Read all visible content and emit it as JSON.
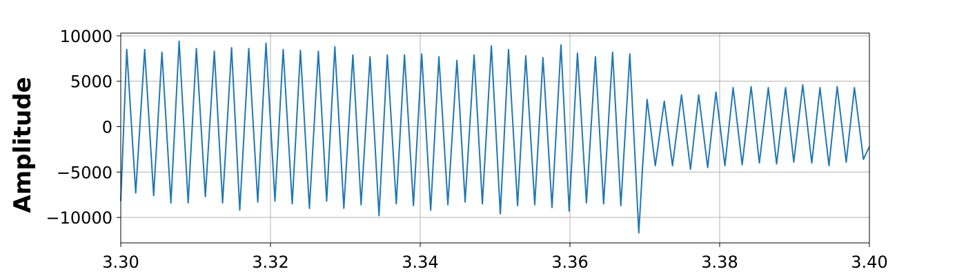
{
  "chart_data": {
    "type": "line",
    "title": "",
    "xlabel": "",
    "ylabel": "Amplitude",
    "xlim": [
      3.3,
      3.4
    ],
    "ylim": [
      -12800,
      10300
    ],
    "grid": true,
    "legend": "none",
    "colors": {
      "line": "#1f77b4",
      "grid": "#b0b0b0",
      "frame": "#000000"
    },
    "x_ticks": [
      {
        "value": 3.3,
        "label": "3.30"
      },
      {
        "value": 3.32,
        "label": "3.32"
      },
      {
        "value": 3.34,
        "label": "3.34"
      },
      {
        "value": 3.36,
        "label": "3.36"
      },
      {
        "value": 3.38,
        "label": "3.38"
      },
      {
        "value": 3.4,
        "label": "3.40"
      }
    ],
    "y_ticks": [
      {
        "value": 10000,
        "label": "10000"
      },
      {
        "value": 5000,
        "label": "5000"
      },
      {
        "value": 0,
        "label": "0"
      },
      {
        "value": -5000,
        "label": "−5000"
      },
      {
        "value": -10000,
        "label": "−10000"
      }
    ],
    "series": [
      {
        "points": [
          [
            3.3,
            -8200
          ],
          [
            3.3008,
            8500
          ],
          [
            3.302,
            -7300
          ],
          [
            3.3032,
            8500
          ],
          [
            3.3044,
            -7600
          ],
          [
            3.3055,
            8200
          ],
          [
            3.3067,
            -8400
          ],
          [
            3.3078,
            9400
          ],
          [
            3.309,
            -8400
          ],
          [
            3.3101,
            8600
          ],
          [
            3.3113,
            -7700
          ],
          [
            3.3125,
            8300
          ],
          [
            3.3136,
            -8400
          ],
          [
            3.3148,
            8700
          ],
          [
            3.3159,
            -9200
          ],
          [
            3.3171,
            8600
          ],
          [
            3.3183,
            -8300
          ],
          [
            3.3194,
            9200
          ],
          [
            3.3206,
            -8200
          ],
          [
            3.3217,
            8500
          ],
          [
            3.3229,
            -8500
          ],
          [
            3.324,
            8400
          ],
          [
            3.3252,
            -9000
          ],
          [
            3.3264,
            8300
          ],
          [
            3.3275,
            -8200
          ],
          [
            3.3286,
            8800
          ],
          [
            3.3298,
            -9000
          ],
          [
            3.331,
            7900
          ],
          [
            3.3321,
            -8600
          ],
          [
            3.3333,
            7700
          ],
          [
            3.3345,
            -9800
          ],
          [
            3.3356,
            7900
          ],
          [
            3.3368,
            -8500
          ],
          [
            3.3379,
            7900
          ],
          [
            3.3391,
            -8700
          ],
          [
            3.3402,
            8000
          ],
          [
            3.3414,
            -9200
          ],
          [
            3.3425,
            7700
          ],
          [
            3.3437,
            -8600
          ],
          [
            3.3449,
            7300
          ],
          [
            3.346,
            -8300
          ],
          [
            3.3472,
            7900
          ],
          [
            3.3483,
            -8500
          ],
          [
            3.3495,
            8900
          ],
          [
            3.3507,
            -9600
          ],
          [
            3.3518,
            8500
          ],
          [
            3.353,
            -8700
          ],
          [
            3.3541,
            7800
          ],
          [
            3.3553,
            -8600
          ],
          [
            3.3564,
            7600
          ],
          [
            3.3576,
            -8900
          ],
          [
            3.3588,
            9000
          ],
          [
            3.3599,
            -9300
          ],
          [
            3.361,
            8100
          ],
          [
            3.3622,
            -8400
          ],
          [
            3.3634,
            7700
          ],
          [
            3.3645,
            -8500
          ],
          [
            3.3657,
            8200
          ],
          [
            3.3668,
            -8700
          ],
          [
            3.368,
            8000
          ],
          [
            3.3692,
            -11700
          ],
          [
            3.3697,
            -4500
          ],
          [
            3.3703,
            3000
          ],
          [
            3.3714,
            -4300
          ],
          [
            3.3726,
            2800
          ],
          [
            3.3737,
            -4300
          ],
          [
            3.3749,
            3500
          ],
          [
            3.3761,
            -4700
          ],
          [
            3.3772,
            3500
          ],
          [
            3.3784,
            -4500
          ],
          [
            3.3795,
            3800
          ],
          [
            3.3807,
            -4300
          ],
          [
            3.3818,
            4300
          ],
          [
            3.383,
            -4200
          ],
          [
            3.3842,
            4400
          ],
          [
            3.3853,
            -4000
          ],
          [
            3.3865,
            4300
          ],
          [
            3.3876,
            -4100
          ],
          [
            3.3888,
            4300
          ],
          [
            3.3899,
            -3900
          ],
          [
            3.3911,
            4600
          ],
          [
            3.3923,
            -4000
          ],
          [
            3.3934,
            4300
          ],
          [
            3.3946,
            -4300
          ],
          [
            3.3957,
            4400
          ],
          [
            3.3969,
            -3900
          ],
          [
            3.398,
            4300
          ],
          [
            3.3992,
            -3600
          ],
          [
            3.4,
            -2200
          ]
        ]
      }
    ]
  }
}
